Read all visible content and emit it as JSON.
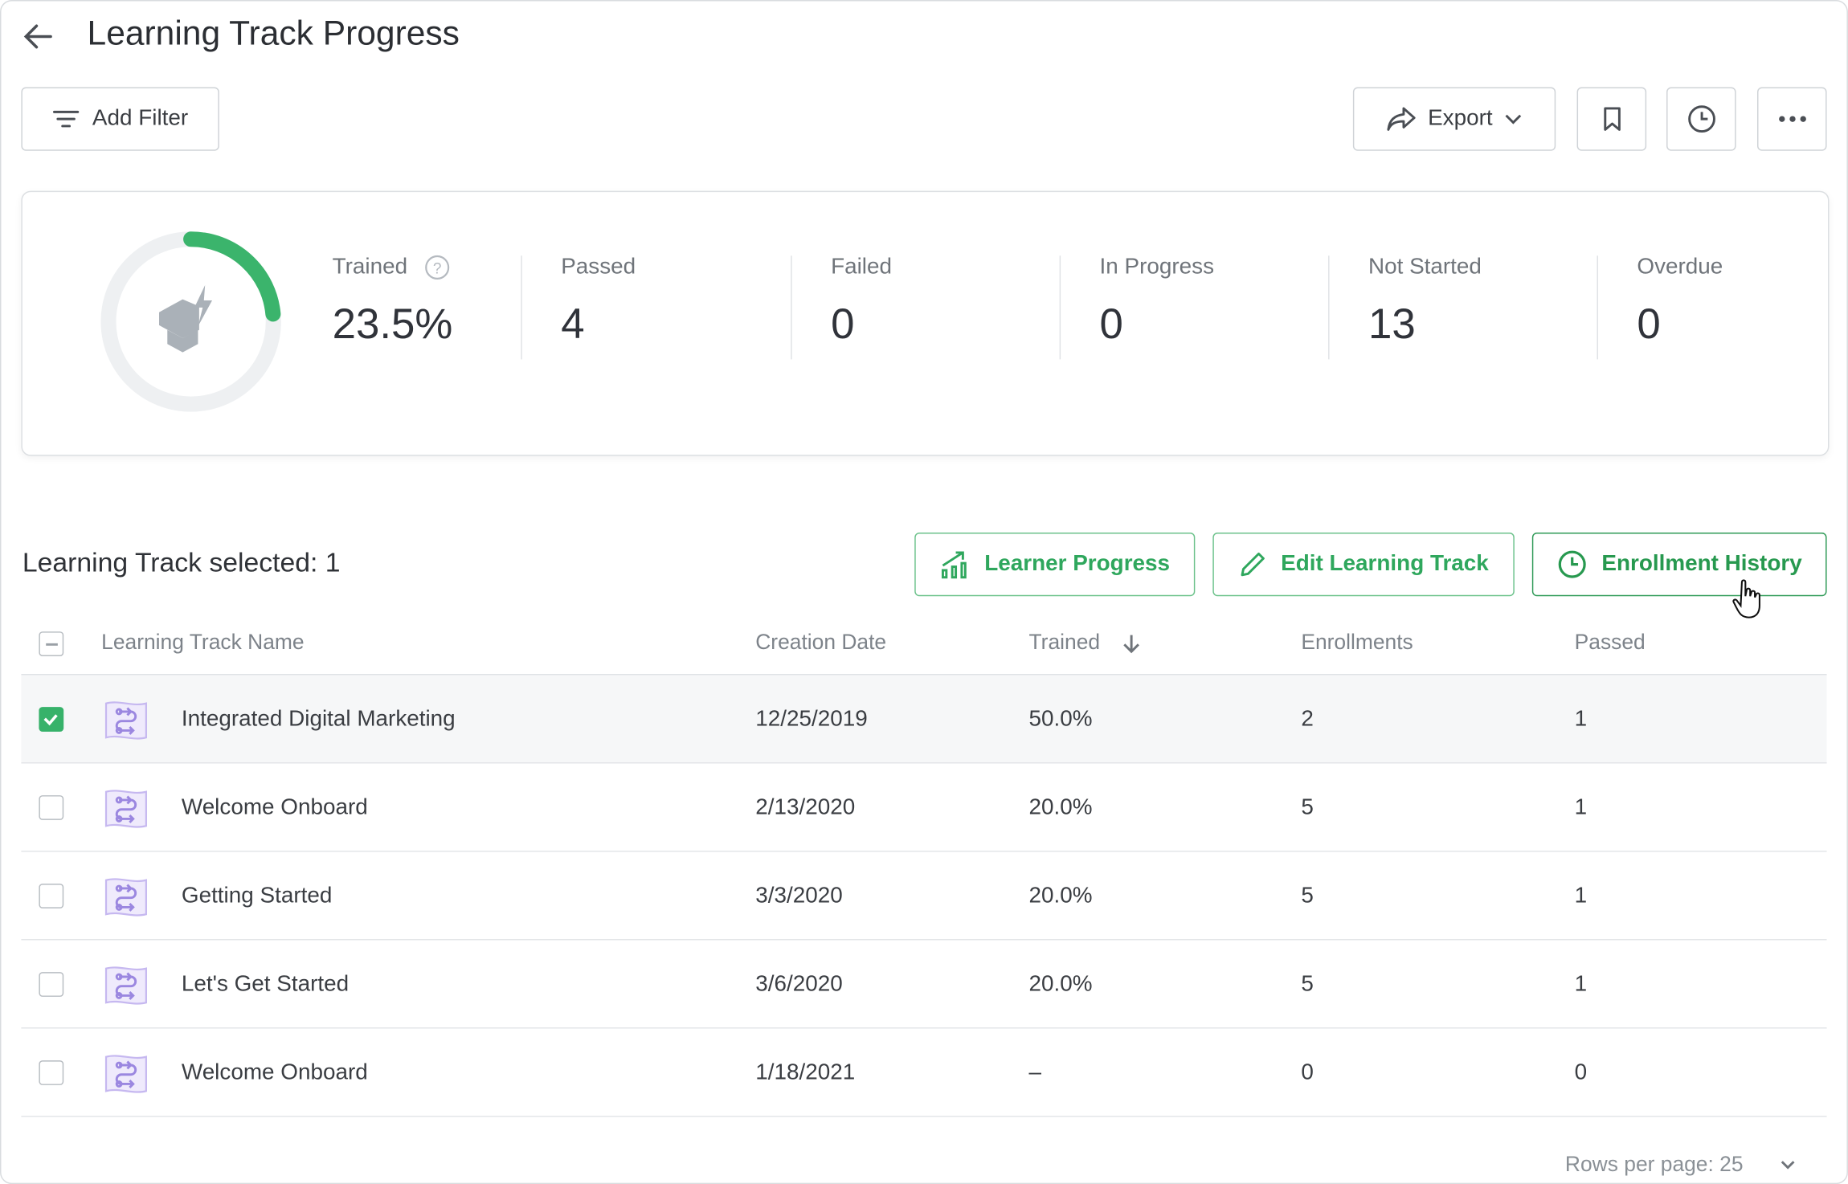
{
  "header": {
    "title": "Learning Track Progress"
  },
  "toolbar": {
    "add_filter": "Add Filter",
    "export": "Export"
  },
  "summary": {
    "trained_fraction": 0.235,
    "stats": [
      {
        "label": "Trained",
        "value": "23.5%"
      },
      {
        "label": "Passed",
        "value": "4"
      },
      {
        "label": "Failed",
        "value": "0"
      },
      {
        "label": "In Progress",
        "value": "0"
      },
      {
        "label": "Not Started",
        "value": "13"
      },
      {
        "label": "Overdue",
        "value": "0"
      }
    ]
  },
  "selection": {
    "text": "Learning Track selected: 1"
  },
  "actions": {
    "learner_progress": "Learner Progress",
    "edit": "Edit Learning Track",
    "history": "Enrollment History"
  },
  "table": {
    "columns": [
      "Learning Track Name",
      "Creation Date",
      "Trained",
      "Enrollments",
      "Passed"
    ],
    "rows": [
      {
        "name": "Integrated Digital Marketing",
        "date": "12/25/2019",
        "trained": "50.0%",
        "enrollments": "2",
        "passed": "1",
        "selected": true
      },
      {
        "name": "Welcome Onboard",
        "date": "2/13/2020",
        "trained": "20.0%",
        "enrollments": "5",
        "passed": "1",
        "selected": false
      },
      {
        "name": "Getting Started",
        "date": "3/3/2020",
        "trained": "20.0%",
        "enrollments": "5",
        "passed": "1",
        "selected": false
      },
      {
        "name": "Let's Get Started",
        "date": "3/6/2020",
        "trained": "20.0%",
        "enrollments": "5",
        "passed": "1",
        "selected": false
      },
      {
        "name": "Welcome Onboard",
        "date": "1/18/2021",
        "trained": "–",
        "enrollments": "0",
        "passed": "0",
        "selected": false
      }
    ]
  },
  "footer": {
    "rows_per_page": "Rows per page: 25"
  },
  "colors": {
    "accent": "#37b26a",
    "track_icon": "#9b87e0"
  }
}
